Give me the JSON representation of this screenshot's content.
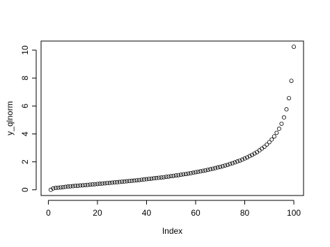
{
  "chart_data": {
    "type": "scatter",
    "xlabel": "Index",
    "ylabel": "y_qlnorm",
    "x": [
      1,
      2,
      3,
      4,
      5,
      6,
      7,
      8,
      9,
      10,
      11,
      12,
      13,
      14,
      15,
      16,
      17,
      18,
      19,
      20,
      21,
      22,
      23,
      24,
      25,
      26,
      27,
      28,
      29,
      30,
      31,
      32,
      33,
      34,
      35,
      36,
      37,
      38,
      39,
      40,
      41,
      42,
      43,
      44,
      45,
      46,
      47,
      48,
      49,
      50,
      51,
      52,
      53,
      54,
      55,
      56,
      57,
      58,
      59,
      60,
      61,
      62,
      63,
      64,
      65,
      66,
      67,
      68,
      69,
      70,
      71,
      72,
      73,
      74,
      75,
      76,
      77,
      78,
      79,
      80,
      81,
      82,
      83,
      84,
      85,
      86,
      87,
      88,
      89,
      90,
      91,
      92,
      93,
      94,
      95,
      96,
      97,
      98,
      99,
      100
    ],
    "values": [
      0,
      0.1,
      0.13,
      0.15,
      0.17,
      0.19,
      0.21,
      0.23,
      0.25,
      0.26,
      0.28,
      0.29,
      0.31,
      0.32,
      0.34,
      0.35,
      0.37,
      0.39,
      0.4,
      0.42,
      0.43,
      0.45,
      0.46,
      0.48,
      0.49,
      0.51,
      0.53,
      0.54,
      0.56,
      0.58,
      0.59,
      0.61,
      0.63,
      0.64,
      0.66,
      0.68,
      0.7,
      0.72,
      0.74,
      0.76,
      0.78,
      0.8,
      0.82,
      0.84,
      0.86,
      0.88,
      0.9,
      0.93,
      0.95,
      0.98,
      1,
      1.03,
      1.05,
      1.08,
      1.11,
      1.13,
      1.16,
      1.19,
      1.22,
      1.26,
      1.29,
      1.32,
      1.36,
      1.39,
      1.43,
      1.47,
      1.51,
      1.55,
      1.6,
      1.64,
      1.69,
      1.74,
      1.79,
      1.85,
      1.9,
      1.96,
      2.03,
      2.09,
      2.16,
      2.24,
      2.32,
      2.41,
      2.5,
      2.6,
      2.7,
      2.82,
      2.95,
      3.08,
      3.24,
      3.41,
      3.6,
      3.82,
      4.08,
      4.37,
      4.73,
      5.18,
      5.76,
      6.56,
      7.8,
      10.24
    ],
    "color": "#000000",
    "xlim": [
      -2.96,
      103.96
    ],
    "xticks": [
      0,
      20,
      40,
      60,
      80,
      100
    ],
    "ylim": [
      -0.41,
      10.65
    ],
    "yticks": [
      0,
      2,
      4,
      6,
      8,
      10
    ]
  }
}
